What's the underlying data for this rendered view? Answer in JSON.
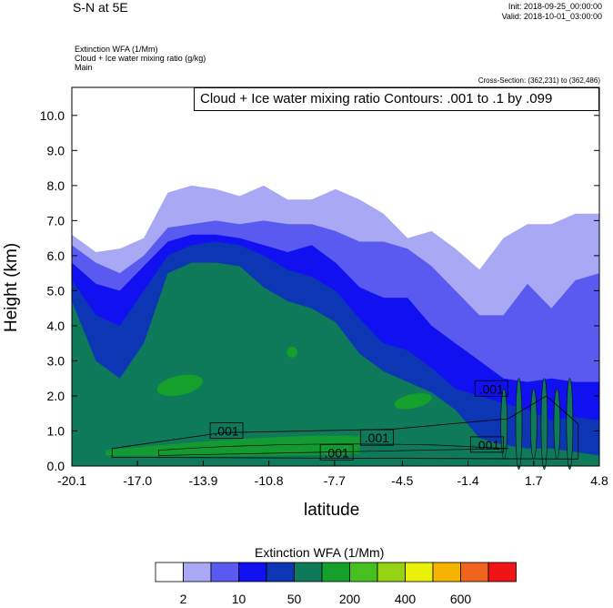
{
  "header": {
    "title": "S-N at 5E",
    "init": "Init: 2018-09-25_00:00:00",
    "valid": "Valid: 2018-10-01_03:00:00",
    "field_1": "Extinction WFA   (1/Mm)",
    "field_2": "Cloud + Ice water mixing ratio   (g/kg)",
    "field_3": "Main",
    "cross_section": "Cross-Section: (362,231) to (362,486)",
    "contour_info": "Cloud + Ice water mixing ratio Contours: .001 to .1 by .099"
  },
  "chart_data": {
    "type": "heatmap",
    "xlabel": "latitude",
    "ylabel": "Height (km)",
    "xlim": [
      -20.1,
      4.8
    ],
    "ylim": [
      0.0,
      10.8
    ],
    "x_ticks": [
      "-20.1",
      "-17.0",
      "-13.9",
      "-10.8",
      "-7.7",
      "-4.5",
      "-1.4",
      "1.7",
      "4.8"
    ],
    "y_ticks": [
      "0.0",
      "1.0",
      "2.0",
      "3.0",
      "4.0",
      "5.0",
      "6.0",
      "7.0",
      "8.0",
      "9.0",
      "10.0"
    ],
    "colorbar": {
      "title": "Extinction WFA  (1/Mm)",
      "labels": [
        "2",
        "10",
        "50",
        "200",
        "400",
        "600"
      ],
      "colors": [
        "#ffffff",
        "#a8a8f5",
        "#5a5af0",
        "#1010f0",
        "#0c36b4",
        "#0f7a5a",
        "#14a02a",
        "#46c01e",
        "#96d214",
        "#eaf00a",
        "#f5b400",
        "#f0641e",
        "#f01414"
      ]
    },
    "contour_labels": [
      ".001",
      ".001",
      ".001",
      ".001",
      ".001"
    ],
    "layers": [
      {
        "level": "2",
        "top_km": [
          6.6,
          6.1,
          6.2,
          6.5,
          7.8,
          8.0,
          7.9,
          7.7,
          8.0,
          7.6,
          7.6,
          7.9,
          7.6,
          7.2,
          6.5,
          6.7,
          6.2,
          5.6,
          6.5,
          6.9,
          6.9,
          7.2,
          7.2
        ]
      },
      {
        "level": "10",
        "top_km": [
          6.3,
          5.8,
          5.5,
          6.0,
          6.8,
          6.9,
          7.0,
          6.9,
          7.0,
          6.9,
          6.9,
          6.7,
          6.4,
          6.4,
          6.2,
          5.7,
          5.0,
          4.3,
          4.3,
          5.2,
          4.5,
          5.3,
          5.5
        ]
      },
      {
        "level": "50",
        "top_km": [
          5.8,
          5.2,
          5.0,
          5.7,
          6.4,
          6.6,
          6.6,
          6.5,
          6.3,
          6.1,
          6.3,
          5.8,
          5.1,
          4.8,
          4.8,
          4.0,
          3.5,
          3.0,
          2.5,
          2.4,
          2.5,
          2.4,
          2.4
        ]
      },
      {
        "level": "100",
        "top_km": [
          5.3,
          4.3,
          4.0,
          5.0,
          6.0,
          6.3,
          6.4,
          6.3,
          6.0,
          5.6,
          5.4,
          5.0,
          4.2,
          3.5,
          3.3,
          2.8,
          2.2,
          2.0,
          1.8,
          1.6,
          1.3,
          1.4,
          1.3
        ]
      },
      {
        "level": "200",
        "top_km": [
          4.7,
          3.0,
          2.5,
          3.5,
          5.5,
          5.8,
          5.8,
          5.7,
          5.1,
          4.7,
          4.5,
          4.1,
          3.2,
          2.7,
          2.4,
          2.1,
          1.6,
          0.8,
          0.6,
          0.5,
          0.5,
          0.4,
          0.3
        ]
      }
    ],
    "patches": [
      {
        "x": -15.0,
        "y": 2.3,
        "w": 2.2,
        "h": 0.55
      },
      {
        "x": -4.0,
        "y": 1.85,
        "w": 1.8,
        "h": 0.4
      },
      {
        "x": -9.7,
        "y": 3.25,
        "w": 0.5,
        "h": 0.3
      }
    ]
  },
  "colors": {
    "axis": "#000000",
    "contour": "#000000"
  }
}
